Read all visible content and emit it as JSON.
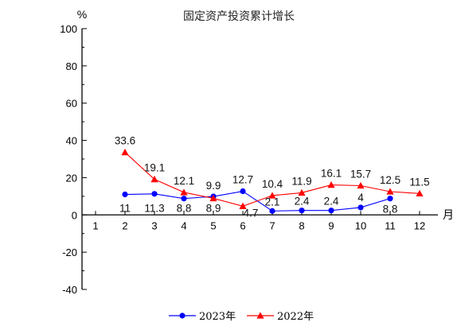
{
  "chart_data": {
    "type": "line",
    "title": "固定资产投资累计增长",
    "ylabel": "%",
    "xlabel": "月",
    "ylim": [
      -40,
      100
    ],
    "yticks": [
      -40,
      -20,
      0,
      20,
      40,
      60,
      80,
      100
    ],
    "categories": [
      "1",
      "2",
      "3",
      "4",
      "5",
      "6",
      "7",
      "8",
      "9",
      "10",
      "11",
      "12"
    ],
    "legend_position": "bottom",
    "series": [
      {
        "name": "2023年",
        "color": "#0000ff",
        "marker": "circle",
        "values": [
          null,
          11,
          11.3,
          8.8,
          9.9,
          12.7,
          2.1,
          2.4,
          2.4,
          4,
          8.8,
          null
        ],
        "labels": [
          null,
          "11",
          "11.3",
          "8.8",
          "9.9",
          "12.7",
          "2.1",
          "2.4",
          "2.4",
          "4",
          "8.8",
          null
        ]
      },
      {
        "name": "2022年",
        "color": "#ff0000",
        "marker": "triangle",
        "values": [
          null,
          33.6,
          19.1,
          12.1,
          8.9,
          4.7,
          10.4,
          11.9,
          16.1,
          15.7,
          12.5,
          11.5
        ],
        "labels": [
          null,
          "33.6",
          "19.1",
          "12.1",
          "8.9",
          "4.7",
          "10.4",
          "11.9",
          "16.1",
          "15.7",
          "12.5",
          "11.5"
        ]
      }
    ]
  }
}
